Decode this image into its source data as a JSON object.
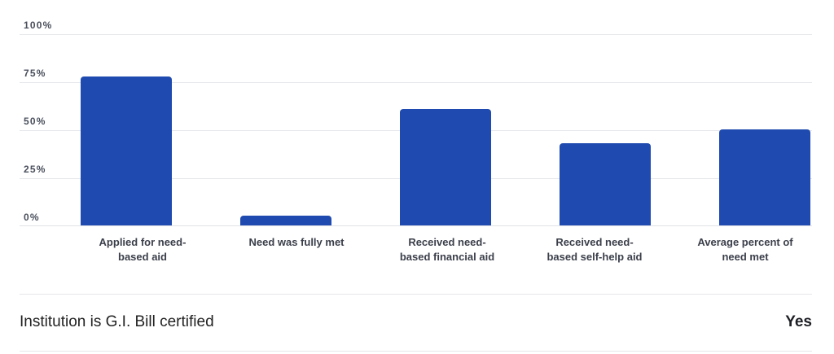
{
  "chart_data": {
    "type": "bar",
    "title": "",
    "xlabel": "",
    "ylabel": "",
    "ylim": [
      0,
      100
    ],
    "yticks": [
      "100%",
      "75%",
      "50%",
      "25%",
      "0%"
    ],
    "grid": true,
    "legend": null,
    "color": "#1f4aaf",
    "categories": [
      "Applied for need-based aid",
      "Need was fully met",
      "Received need-based financial aid",
      "Received need-based self-help aid",
      "Average percent of need met"
    ],
    "values": [
      78,
      5,
      61,
      43,
      50
    ]
  },
  "chart_labels": {
    "yticks": [
      "100%",
      "75%",
      "50%",
      "25%",
      "0%"
    ],
    "categories": [
      "Applied for need-based aid",
      "Need was fully met",
      "Received need-based financial aid",
      "Received need-based self-help aid",
      "Average percent of need met"
    ]
  },
  "info_row": {
    "label": "Institution is G.I. Bill certified",
    "value": "Yes"
  }
}
